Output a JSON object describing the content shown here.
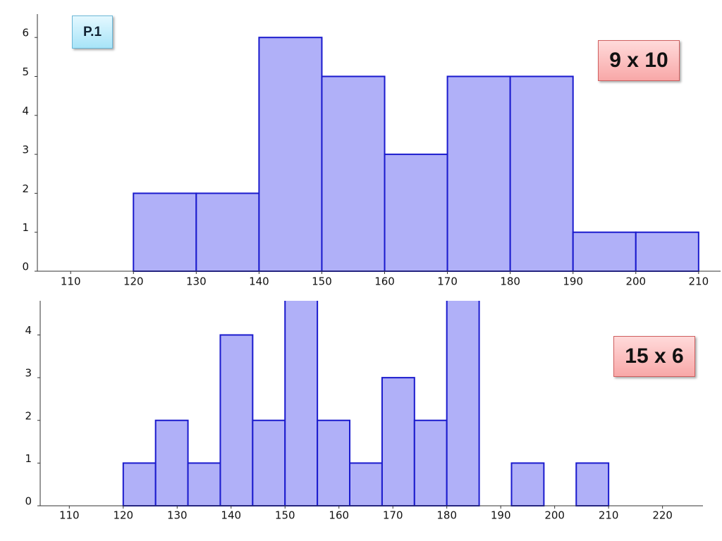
{
  "page_label": "P.1",
  "chart_data": [
    {
      "type": "histogram",
      "annotation": "9 x 10",
      "bins": [
        120,
        130,
        140,
        150,
        160,
        170,
        180,
        190,
        200,
        210
      ],
      "counts": [
        2,
        2,
        6,
        5,
        3,
        5,
        5,
        1,
        1
      ],
      "color": "#b0b0f8",
      "edge_color": "#1a1acd",
      "xlim": [
        104.7,
        213.5
      ],
      "xticks": [
        110,
        120,
        130,
        140,
        150,
        160,
        170,
        180,
        190,
        200,
        210
      ],
      "ylim": [
        0,
        6.6
      ],
      "yticks": [
        0,
        1,
        2,
        3,
        4,
        5,
        6
      ]
    },
    {
      "type": "histogram",
      "annotation": "15 x 6",
      "bins": [
        120,
        126,
        132,
        138,
        144,
        150,
        156,
        162,
        168,
        174,
        180,
        186,
        192,
        198,
        204,
        210
      ],
      "counts": [
        1,
        2,
        1,
        4,
        2,
        5,
        2,
        1,
        3,
        2,
        5,
        0,
        1,
        0,
        1
      ],
      "color": "#b0b0f8",
      "edge_color": "#1a1acd",
      "xlim": [
        104.6,
        227.5
      ],
      "xticks": [
        110,
        120,
        130,
        140,
        150,
        160,
        170,
        180,
        190,
        200,
        210,
        220
      ],
      "ylim": [
        0,
        4.8
      ],
      "yticks": [
        0,
        1,
        2,
        3,
        4
      ]
    }
  ]
}
